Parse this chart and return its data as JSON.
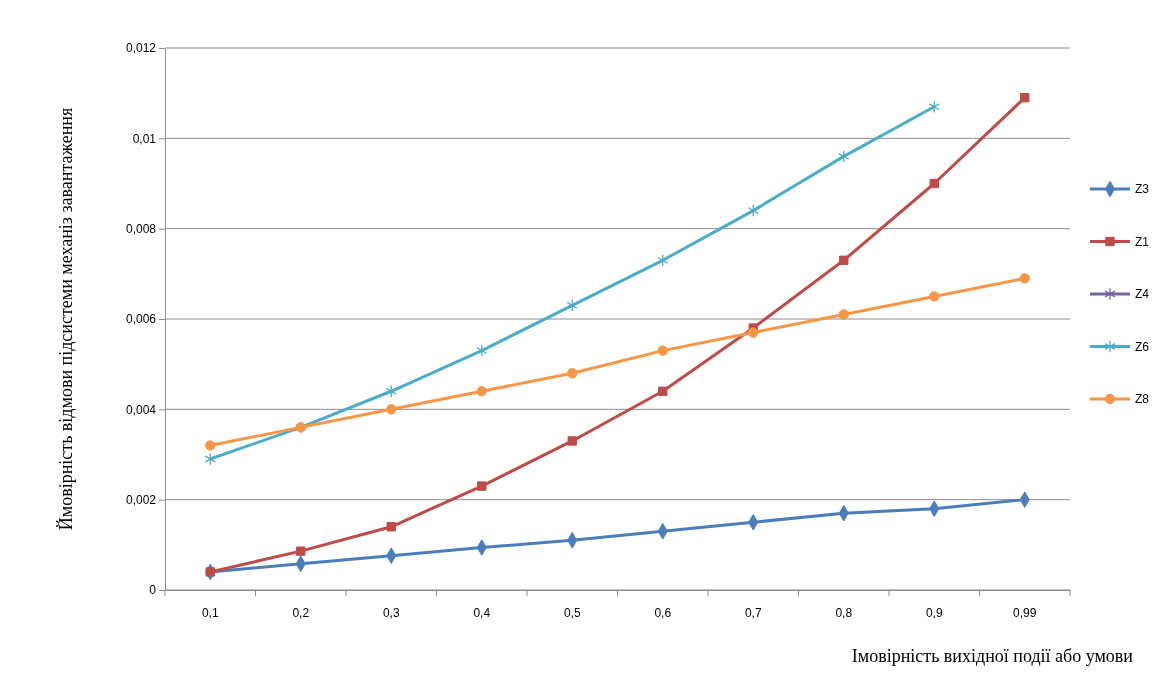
{
  "chart_data": {
    "type": "line",
    "xlabel": "Імовірність вихідної події або умови",
    "ylabel": "Ймовірність відмови підсистеми механіз завантаження",
    "categories": [
      "0,1",
      "0,2",
      "0,3",
      "0,4",
      "0,5",
      "0,6",
      "0,7",
      "0,8",
      "0,9",
      "0,99"
    ],
    "ylim": [
      0,
      0.012
    ],
    "yticks": [
      {
        "value": 0,
        "label": "0"
      },
      {
        "value": 0.002,
        "label": "0,002"
      },
      {
        "value": 0.004,
        "label": "0,004"
      },
      {
        "value": 0.006,
        "label": "0,006"
      },
      {
        "value": 0.008,
        "label": "0,008"
      },
      {
        "value": 0.01,
        "label": "0,01"
      },
      {
        "value": 0.012,
        "label": "0,012"
      }
    ],
    "grid": "y",
    "legend": "right",
    "series": [
      {
        "name": "Z3",
        "color": "#4a7ebb",
        "marker": "diamond",
        "values": [
          0.0004,
          0.00058,
          0.00076,
          0.00094,
          0.0011,
          0.0013,
          0.0015,
          0.0017,
          0.0018,
          0.002
        ]
      },
      {
        "name": "Z1",
        "color": "#be4b48",
        "marker": "square",
        "values": [
          0.0004,
          0.00086,
          0.0014,
          0.0023,
          0.0033,
          0.0044,
          0.0058,
          0.0073,
          0.009,
          0.0109
        ]
      },
      {
        "name": "Z4",
        "color": "#7d60a0",
        "marker": "cross",
        "values": [
          null,
          null,
          null,
          null,
          null,
          null,
          null,
          null,
          null,
          null
        ]
      },
      {
        "name": "Z6",
        "color": "#4bacc6",
        "marker": "cross",
        "values": [
          0.0029,
          0.0036,
          0.0044,
          0.0053,
          0.0063,
          0.0073,
          0.0084,
          0.0096,
          0.0107,
          null
        ]
      },
      {
        "name": "Z8",
        "color": "#f79646",
        "marker": "circle",
        "values": [
          0.0032,
          0.0036,
          0.004,
          0.0044,
          0.0048,
          0.0053,
          0.0057,
          0.0061,
          0.0065,
          0.0069
        ]
      }
    ]
  }
}
